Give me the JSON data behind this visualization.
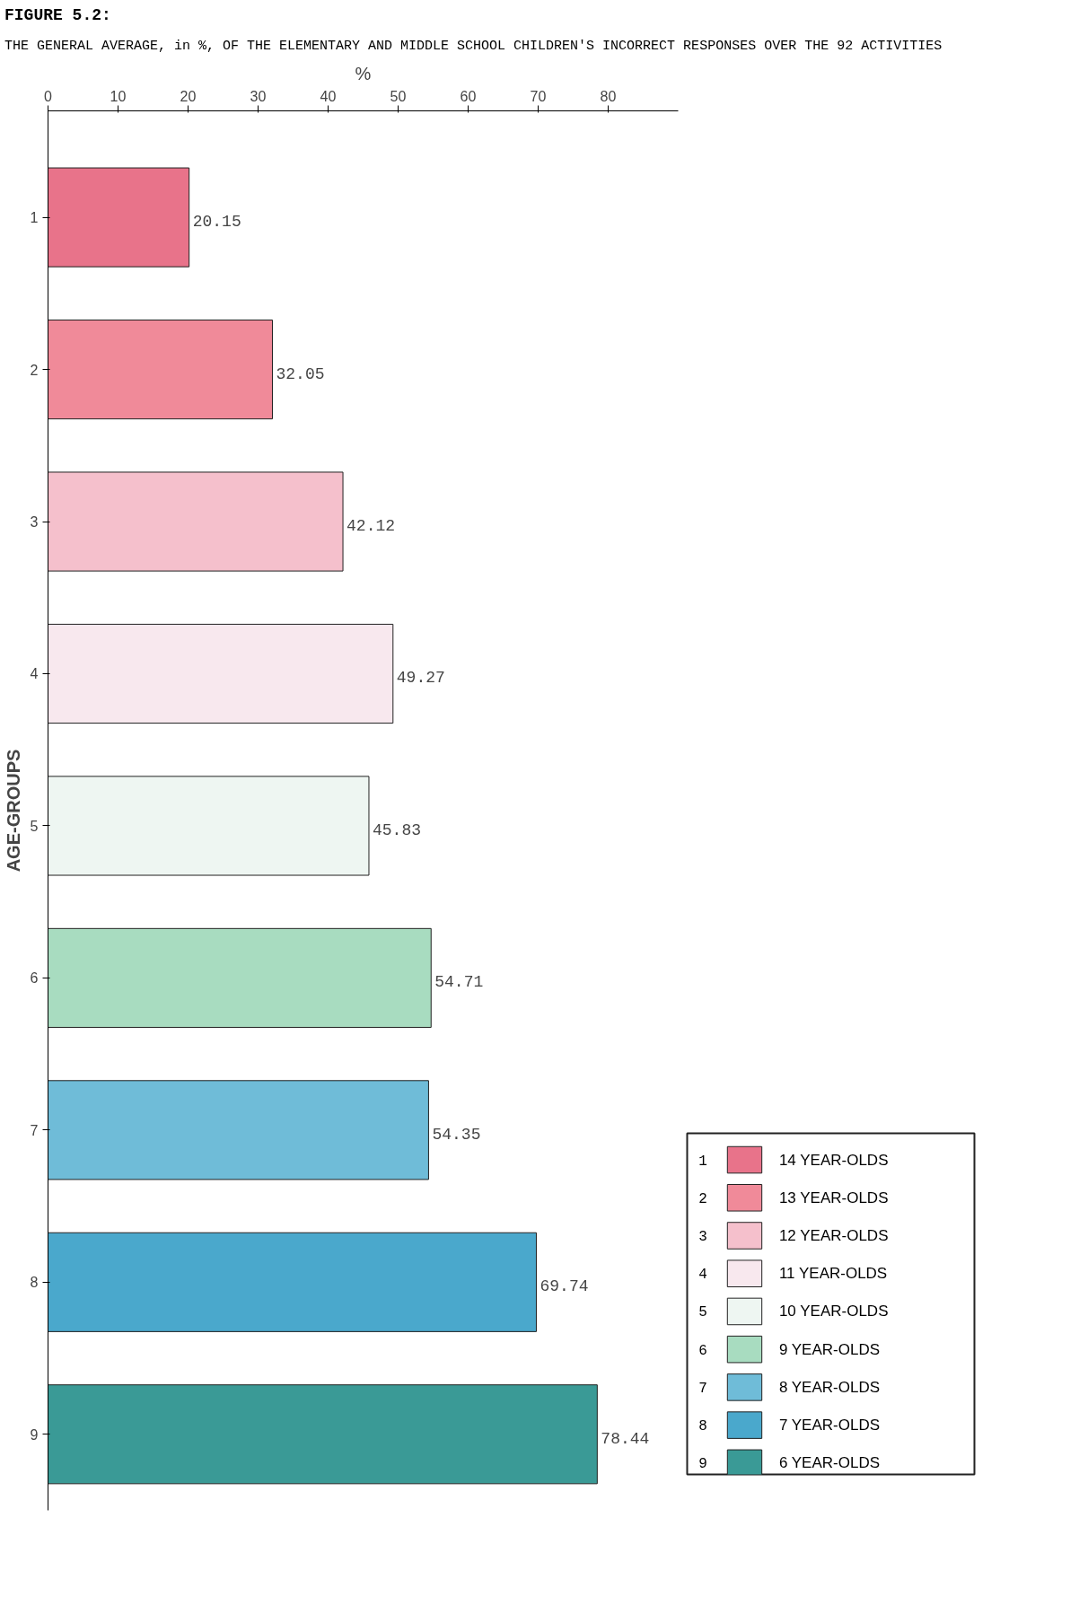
{
  "chart_data": {
    "type": "bar",
    "orientation": "horizontal",
    "title": "FIGURE 5.2:",
    "subtitle": "THE GENERAL AVERAGE, in %, OF THE ELEMENTARY AND MIDDLE SCHOOL CHILDREN'S INCORRECT RESPONSES OVER THE 92 ACTIVITIES",
    "xlabel": "%",
    "ylabel": "AGE-GROUPS",
    "categories": [
      "1",
      "2",
      "3",
      "4",
      "5",
      "6",
      "7",
      "8",
      "9"
    ],
    "series": [
      {
        "name": "14 YEAR-OLDS",
        "color": "#e8738a",
        "values": [
          20.15,
          null,
          null,
          null,
          null,
          null,
          null,
          null,
          null
        ]
      },
      {
        "name": "13 YEAR-OLDS",
        "color": "#f08a99",
        "values": [
          null,
          32.05,
          null,
          null,
          null,
          null,
          null,
          null,
          null
        ]
      },
      {
        "name": "12 YEAR-OLDS",
        "color": "#f5c0cc",
        "values": [
          null,
          null,
          42.12,
          null,
          null,
          null,
          null,
          null,
          null
        ]
      },
      {
        "name": "11 YEAR-OLDS",
        "color": "#f8e8ee",
        "values": [
          null,
          null,
          null,
          49.27,
          null,
          null,
          null,
          null,
          null
        ]
      },
      {
        "name": "10 YEAR-OLDS",
        "color": "#eef6f2",
        "values": [
          null,
          null,
          null,
          null,
          45.83,
          null,
          null,
          null,
          null
        ]
      },
      {
        "name": "9 YEAR-OLDS",
        "color": "#a8dcc0",
        "values": [
          null,
          null,
          null,
          null,
          null,
          54.71,
          null,
          null,
          null
        ]
      },
      {
        "name": "8 YEAR-OLDS",
        "color": "#6fbcd8",
        "values": [
          null,
          null,
          null,
          null,
          null,
          null,
          54.35,
          null,
          null
        ]
      },
      {
        "name": "7 YEAR-OLDS",
        "color": "#4aa8cc",
        "values": [
          null,
          null,
          null,
          null,
          null,
          null,
          null,
          69.74,
          null
        ]
      },
      {
        "name": "6 YEAR-OLDS",
        "color": "#3a9a96",
        "values": [
          null,
          null,
          null,
          null,
          null,
          null,
          null,
          null,
          78.44
        ]
      }
    ],
    "xlim": [
      0,
      90
    ],
    "xticks": [
      0,
      10,
      20,
      30,
      40,
      50,
      60,
      70,
      80
    ],
    "data_labels": true,
    "grid": false,
    "legend": "bottom right"
  }
}
